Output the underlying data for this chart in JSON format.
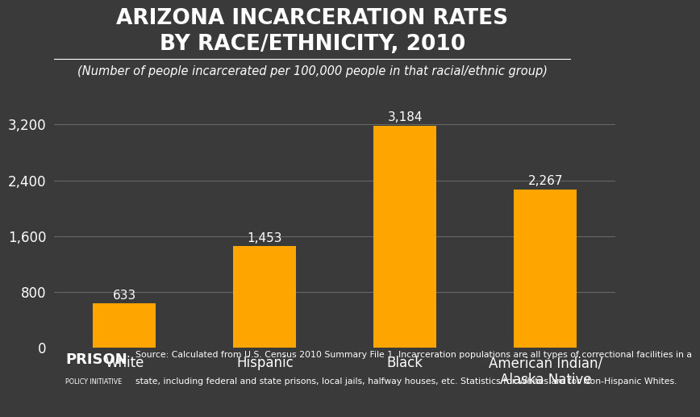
{
  "title_line1": "ARIZONA INCARCERATION RATES",
  "title_line2": "BY RACE/ETHNICITY, 2010",
  "subtitle": "(Number of people incarcerated per 100,000 people in that racial/ethnic group)",
  "categories": [
    "White",
    "Hispanic",
    "Black",
    "American Indian/\nAlaska Native"
  ],
  "values": [
    633,
    1453,
    3184,
    2267
  ],
  "bar_color": "#FFA500",
  "background_color": "#3a3a3a",
  "text_color": "#ffffff",
  "grid_color": "#666666",
  "yticks": [
    0,
    800,
    1600,
    2400,
    3200
  ],
  "ylim": [
    0,
    3500
  ],
  "value_labels": [
    "633",
    "1,453",
    "3,184",
    "2,267"
  ],
  "source_line1": "Source: Calculated from U.S. Census 2010 Summary File 1. Incarceration populations are all types of correctional facilities in a",
  "source_line2": "state, including federal and state prisons, local jails, halfway houses, etc. Statistics for Whites are for Non-Hispanic Whites.",
  "title_fontsize": 19,
  "subtitle_fontsize": 10.5,
  "tick_fontsize": 12,
  "label_fontsize": 12,
  "value_fontsize": 11
}
